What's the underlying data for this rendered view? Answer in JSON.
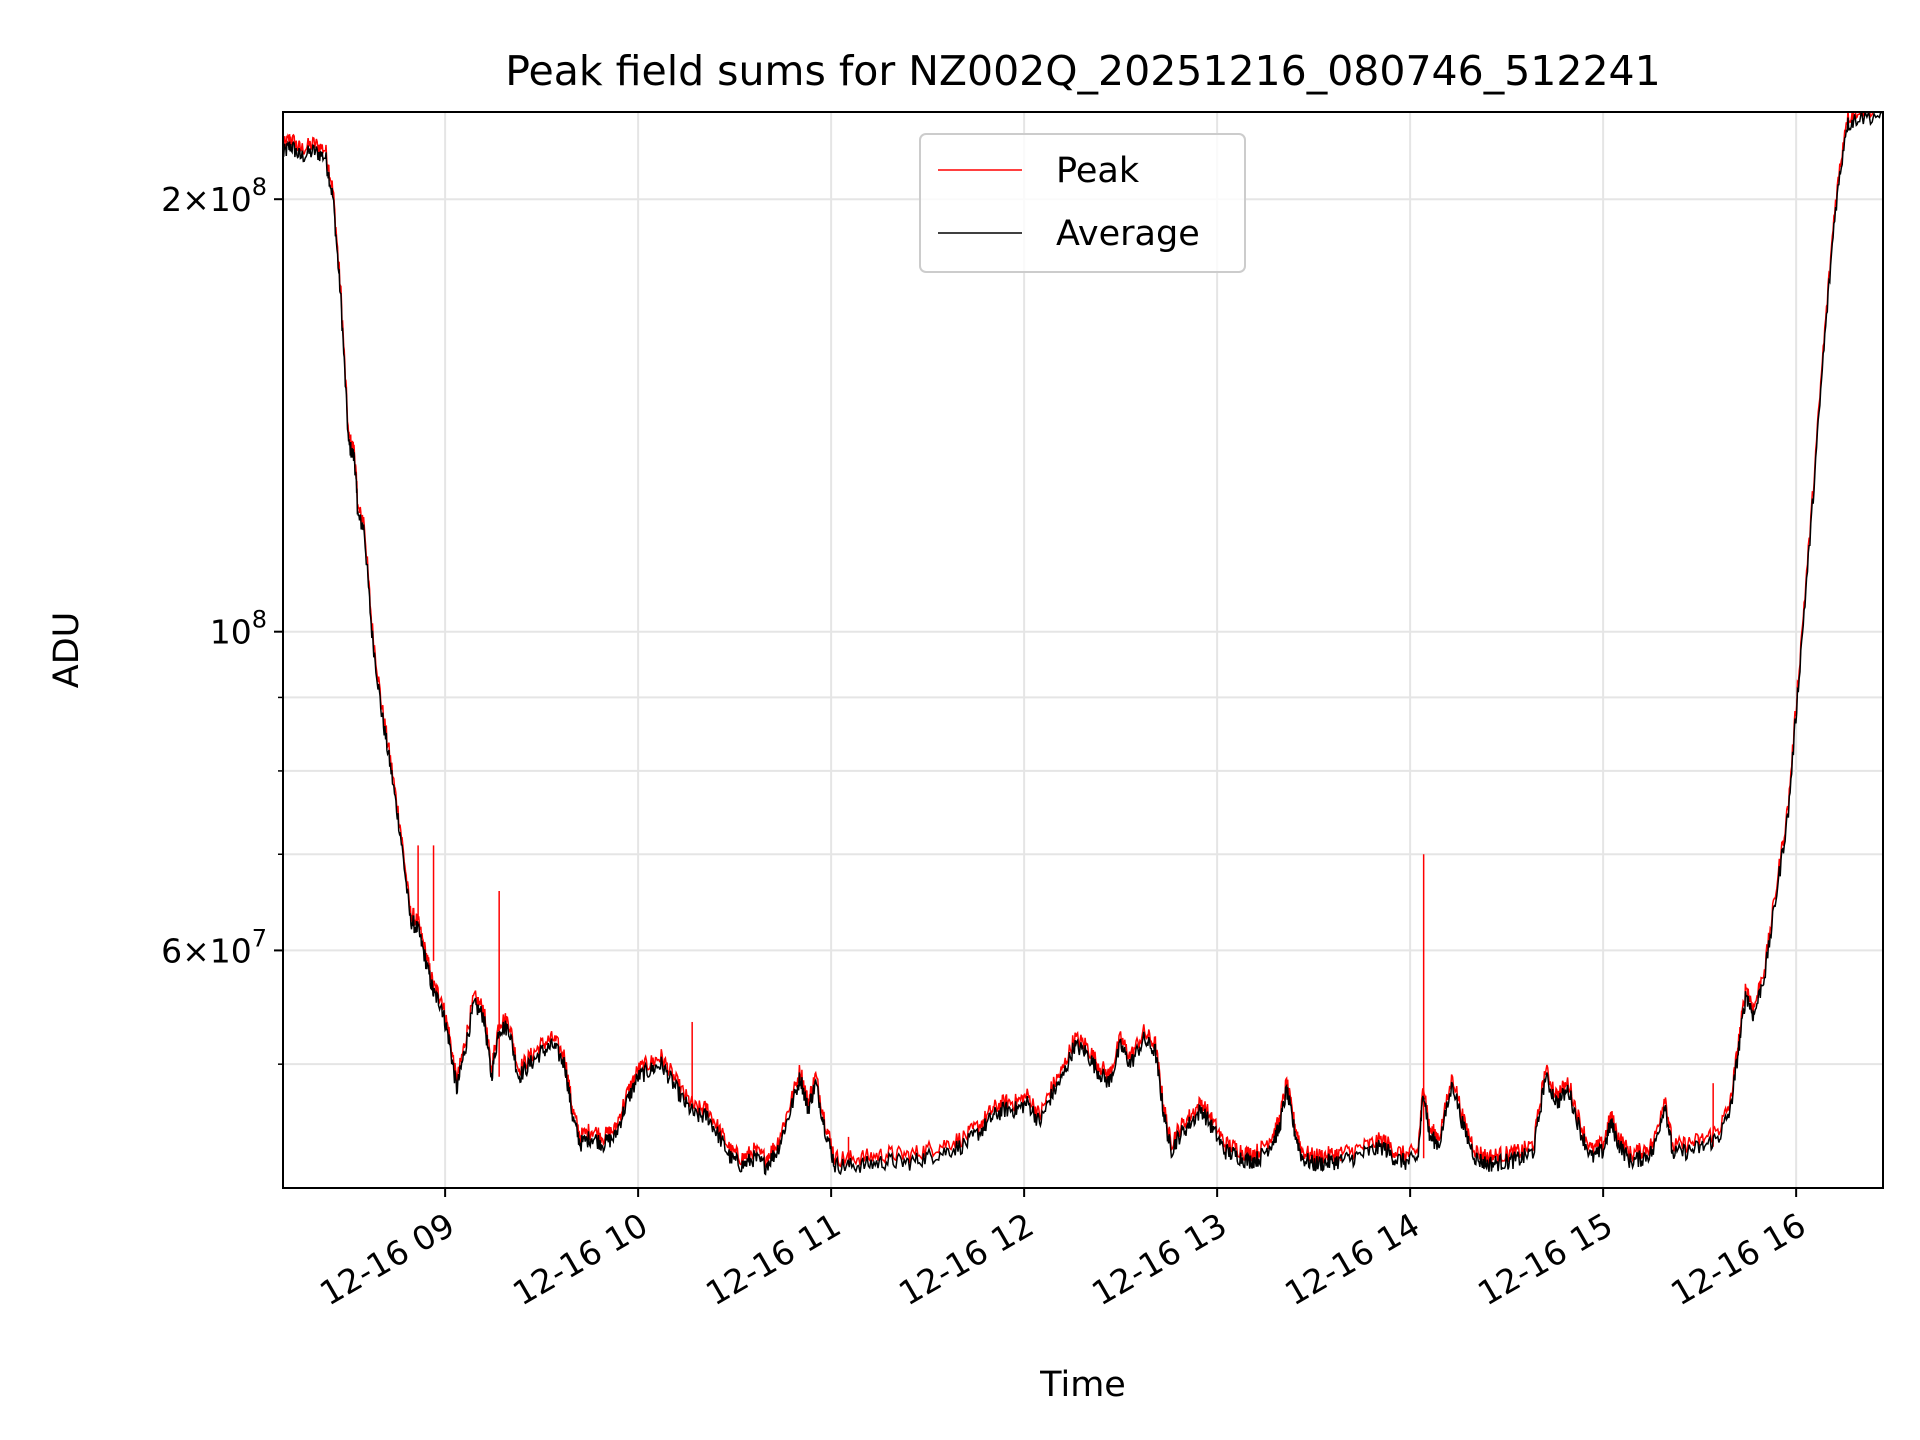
{
  "chart_data": {
    "type": "line",
    "title": "Peak field sums for NZ002Q_20251216_080746_512241",
    "xlabel": "Time",
    "ylabel": "ADU",
    "yscale": "log",
    "grid": true,
    "legend_position": "top-center",
    "xlim": [
      8.16,
      16.45
    ],
    "ylim": [
      41000000,
      230000000
    ],
    "x_units": "hour of day (2025-12-16)",
    "x_ticks": [
      {
        "value": 9,
        "label": "12-16 09"
      },
      {
        "value": 10,
        "label": "12-16 10"
      },
      {
        "value": 11,
        "label": "12-16 11"
      },
      {
        "value": 12,
        "label": "12-16 12"
      },
      {
        "value": 13,
        "label": "12-16 13"
      },
      {
        "value": 14,
        "label": "12-16 14"
      },
      {
        "value": 15,
        "label": "12-16 15"
      },
      {
        "value": 16,
        "label": "12-16 16"
      }
    ],
    "y_major_ticks": [
      {
        "value": 60000000,
        "base": "6×10",
        "exp": "7"
      },
      {
        "value": 100000000,
        "base": "10",
        "exp": "8"
      },
      {
        "value": 200000000,
        "base": "2×10",
        "exp": "8"
      }
    ],
    "y_minor_ticks": [
      50000000,
      70000000,
      80000000,
      90000000,
      300000000
    ],
    "series": [
      {
        "name": "Peak",
        "color": "#ff0000",
        "spikes": [
          {
            "x": 8.86,
            "y": 71000000
          },
          {
            "x": 8.94,
            "y": 71000000
          },
          {
            "x": 9.28,
            "y": 66000000
          },
          {
            "x": 10.28,
            "y": 53500000
          },
          {
            "x": 11.09,
            "y": 44500000
          },
          {
            "x": 13.64,
            "y": 43200000
          },
          {
            "x": 14.07,
            "y": 70000000
          },
          {
            "x": 15.57,
            "y": 48500000
          }
        ],
        "offset_factor": 1.012
      },
      {
        "name": "Average",
        "color": "#000000",
        "points": [
          [
            8.16,
            215000000
          ],
          [
            8.2,
            218000000
          ],
          [
            8.25,
            214000000
          ],
          [
            8.32,
            216000000
          ],
          [
            8.38,
            214000000
          ],
          [
            8.42,
            200000000
          ],
          [
            8.46,
            170000000
          ],
          [
            8.5,
            135000000
          ],
          [
            8.53,
            132000000
          ],
          [
            8.55,
            120000000
          ],
          [
            8.58,
            118000000
          ],
          [
            8.62,
            100000000
          ],
          [
            8.67,
            88000000
          ],
          [
            8.72,
            80000000
          ],
          [
            8.77,
            72000000
          ],
          [
            8.82,
            63000000
          ],
          [
            8.86,
            62000000
          ],
          [
            8.9,
            59000000
          ],
          [
            8.94,
            56000000
          ],
          [
            8.98,
            55000000
          ],
          [
            9.02,
            52000000
          ],
          [
            9.06,
            48000000
          ],
          [
            9.1,
            51000000
          ],
          [
            9.15,
            55000000
          ],
          [
            9.2,
            54000000
          ],
          [
            9.24,
            49000000
          ],
          [
            9.28,
            53000000
          ],
          [
            9.33,
            53000000
          ],
          [
            9.38,
            49000000
          ],
          [
            9.44,
            50000000
          ],
          [
            9.5,
            51000000
          ],
          [
            9.56,
            51500000
          ],
          [
            9.62,
            50000000
          ],
          [
            9.66,
            46000000
          ],
          [
            9.7,
            44000000
          ],
          [
            9.76,
            44500000
          ],
          [
            9.82,
            44000000
          ],
          [
            9.88,
            44500000
          ],
          [
            9.94,
            47000000
          ],
          [
            10.0,
            49000000
          ],
          [
            10.06,
            49500000
          ],
          [
            10.12,
            50000000
          ],
          [
            10.18,
            48500000
          ],
          [
            10.24,
            47000000
          ],
          [
            10.3,
            46000000
          ],
          [
            10.36,
            46000000
          ],
          [
            10.42,
            44500000
          ],
          [
            10.48,
            43000000
          ],
          [
            10.54,
            42500000
          ],
          [
            10.6,
            43000000
          ],
          [
            10.66,
            42500000
          ],
          [
            10.72,
            43500000
          ],
          [
            10.78,
            46000000
          ],
          [
            10.84,
            49000000
          ],
          [
            10.88,
            46500000
          ],
          [
            10.92,
            48500000
          ],
          [
            10.97,
            45000000
          ],
          [
            11.02,
            42500000
          ],
          [
            11.1,
            42500000
          ],
          [
            11.2,
            42600000
          ],
          [
            11.3,
            42800000
          ],
          [
            11.4,
            42700000
          ],
          [
            11.5,
            43100000
          ],
          [
            11.6,
            43500000
          ],
          [
            11.7,
            44000000
          ],
          [
            11.78,
            45000000
          ],
          [
            11.84,
            46000000
          ],
          [
            11.9,
            46500000
          ],
          [
            11.96,
            46500000
          ],
          [
            12.02,
            47000000
          ],
          [
            12.08,
            45500000
          ],
          [
            12.14,
            47500000
          ],
          [
            12.2,
            49000000
          ],
          [
            12.26,
            51500000
          ],
          [
            12.32,
            51000000
          ],
          [
            12.38,
            49500000
          ],
          [
            12.44,
            48500000
          ],
          [
            12.5,
            51500000
          ],
          [
            12.55,
            50000000
          ],
          [
            12.62,
            52000000
          ],
          [
            12.68,
            51000000
          ],
          [
            12.72,
            46500000
          ],
          [
            12.76,
            43500000
          ],
          [
            12.8,
            44500000
          ],
          [
            12.86,
            45500000
          ],
          [
            12.92,
            46500000
          ],
          [
            12.98,
            45000000
          ],
          [
            13.04,
            43500000
          ],
          [
            13.1,
            43200000
          ],
          [
            13.16,
            42800000
          ],
          [
            13.22,
            43000000
          ],
          [
            13.28,
            44000000
          ],
          [
            13.32,
            45000000
          ],
          [
            13.36,
            48000000
          ],
          [
            13.4,
            45000000
          ],
          [
            13.44,
            43000000
          ],
          [
            13.5,
            42600000
          ],
          [
            13.56,
            42700000
          ],
          [
            13.62,
            42800000
          ],
          [
            13.7,
            43000000
          ],
          [
            13.78,
            43400000
          ],
          [
            13.86,
            43800000
          ],
          [
            13.92,
            43000000
          ],
          [
            13.98,
            42700000
          ],
          [
            14.04,
            43000000
          ],
          [
            14.07,
            48000000
          ],
          [
            14.1,
            44500000
          ],
          [
            14.15,
            44000000
          ],
          [
            14.22,
            48500000
          ],
          [
            14.28,
            45000000
          ],
          [
            14.34,
            43000000
          ],
          [
            14.4,
            42600000
          ],
          [
            14.46,
            42700000
          ],
          [
            14.52,
            42800000
          ],
          [
            14.58,
            43000000
          ],
          [
            14.64,
            43500000
          ],
          [
            14.7,
            49000000
          ],
          [
            14.76,
            47000000
          ],
          [
            14.82,
            48000000
          ],
          [
            14.88,
            45000000
          ],
          [
            14.94,
            43000000
          ],
          [
            15.0,
            43500000
          ],
          [
            15.04,
            45500000
          ],
          [
            15.08,
            44000000
          ],
          [
            15.14,
            42800000
          ],
          [
            15.2,
            43000000
          ],
          [
            15.26,
            43500000
          ],
          [
            15.32,
            47000000
          ],
          [
            15.36,
            43300000
          ],
          [
            15.44,
            43500000
          ],
          [
            15.52,
            43800000
          ],
          [
            15.6,
            44500000
          ],
          [
            15.66,
            46500000
          ],
          [
            15.7,
            51000000
          ],
          [
            15.74,
            56000000
          ],
          [
            15.78,
            54000000
          ],
          [
            15.84,
            58000000
          ],
          [
            15.9,
            66000000
          ],
          [
            15.96,
            75000000
          ],
          [
            16.02,
            95000000
          ],
          [
            16.08,
            120000000
          ],
          [
            16.14,
            155000000
          ],
          [
            16.2,
            195000000
          ],
          [
            16.26,
            225000000
          ],
          [
            16.32,
            228000000
          ],
          [
            16.45,
            229000000
          ]
        ]
      }
    ]
  }
}
